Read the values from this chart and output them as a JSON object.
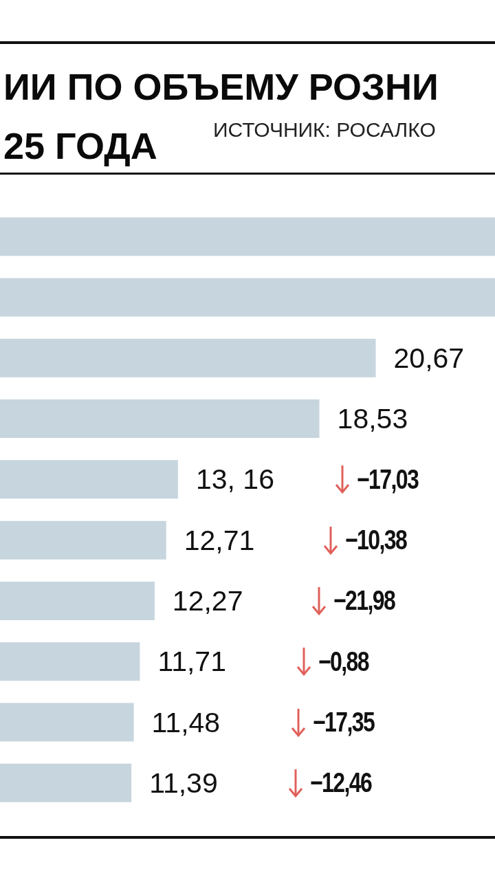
{
  "chart_data": {
    "type": "bar",
    "orientation": "horizontal",
    "title": "ИИ ПО ОБЪЕМУ РОЗНИ\n25 ГОДА",
    "annotations": [
      "ИСТОЧНИК: РОСАЛКО",
      "−17,03",
      "−10,38",
      "−21,98",
      "−0,88",
      "−17,35",
      "−12,46"
    ],
    "categories": [
      null,
      null,
      null,
      null,
      null,
      null,
      null,
      null,
      null,
      null
    ],
    "series": [
      {
        "color": "#c7d5de",
        "values": [
          25.2,
          25.2,
          20.67,
          18.53,
          13.16,
          12.71,
          12.27,
          11.71,
          11.48,
          11.39
        ],
        "value_labels": [
          null,
          null,
          "20,67",
          "18,53",
          "13, 16",
          "12,71",
          "12,27",
          "11,71",
          "11,48",
          "11,39"
        ]
      }
    ]
  }
}
